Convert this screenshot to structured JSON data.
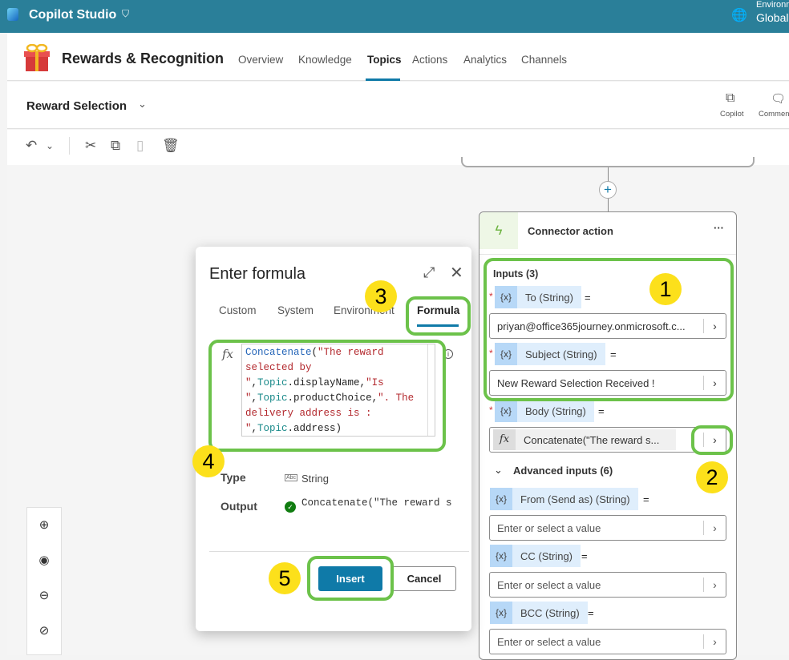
{
  "topbar": {
    "app_name": "Copilot Studio",
    "environment_label": "Environment",
    "environment_value": "Global"
  },
  "header": {
    "agent_name": "Rewards & Recognition",
    "nav": [
      "Overview",
      "Knowledge",
      "Topics",
      "Actions",
      "Analytics",
      "Channels"
    ],
    "active_nav": "Topics"
  },
  "titlebar": {
    "topic_name": "Reward Selection",
    "copilot_label": "Copilot",
    "comments_label": "Comments"
  },
  "card": {
    "title": "Connector action",
    "inputs_label": "Inputs (3)",
    "to_label": "To (String)",
    "to_value": "priyan@office365journey.onmicrosoft.c...",
    "subject_label": "Subject (String)",
    "subject_value": "New Reward Selection Received !",
    "body_label": "Body (String)",
    "body_value": "Concatenate(\"The reward s...",
    "advanced_label": "Advanced inputs (6)",
    "from_label": "From (Send as) (String)",
    "cc_label": "CC (String)",
    "bcc_label": "BCC (String)",
    "placeholder": "Enter or select a value",
    "var_icon": "{x}",
    "eq": "="
  },
  "dialog": {
    "title": "Enter formula",
    "tabs": [
      "Custom",
      "System",
      "Environment",
      "Formula"
    ],
    "active_tab": "Formula",
    "formula": "Concatenate(\"The reward selected by \",Topic.displayName,\"Is \",Topic.productChoice,\". The delivery address is : \",Topic.address)",
    "type_label": "Type",
    "type_value": "String",
    "output_label": "Output",
    "output_value": "Concatenate(\"The reward s",
    "insert_label": "Insert",
    "cancel_label": "Cancel"
  },
  "annotations": [
    "1",
    "2",
    "3",
    "4",
    "5"
  ],
  "colors": {
    "topbar": "#2a7f99",
    "accent": "#0f7aa8",
    "annotation_box": "#6cc24a",
    "annotation_badge": "#fce01b"
  }
}
